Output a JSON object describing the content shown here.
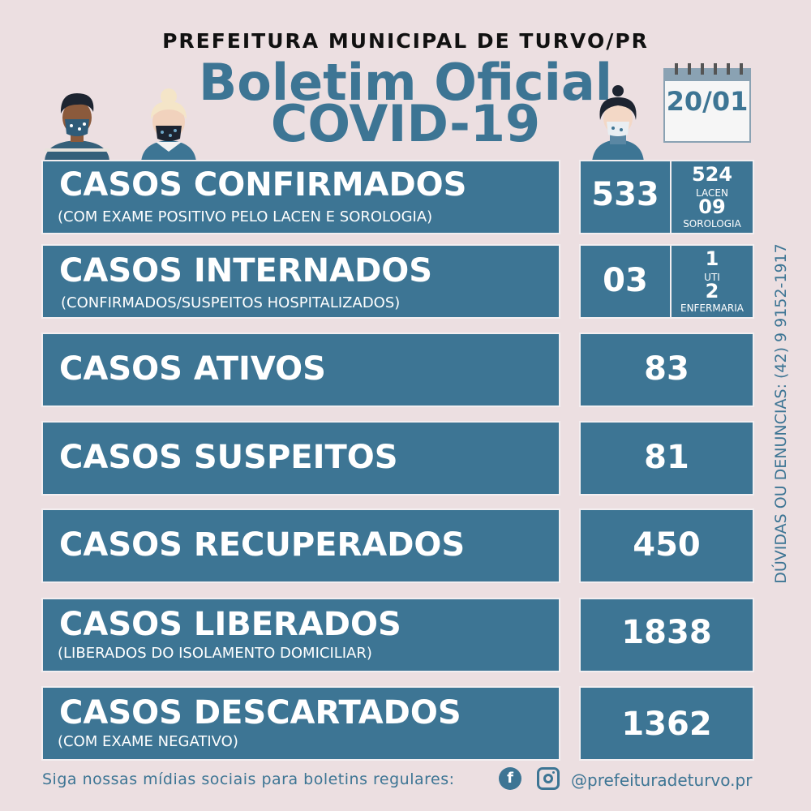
{
  "header": {
    "org": "PREFEITURA MUNICIPAL DE TURVO/PR",
    "title_line1": "Boletim Oficial",
    "title_line2": "COVID-19",
    "date": "20/01"
  },
  "rows": [
    {
      "label": "CASOS CONFIRMADOS",
      "sub": "(COM EXAME POSITIVO PELO LACEN E SOROLOGIA)",
      "value": "533",
      "breakdown": {
        "a_value": "524",
        "a_label": "LACEN",
        "b_value": "09",
        "b_label": "SOROLOGIA"
      }
    },
    {
      "label": "CASOS INTERNADOS",
      "sub": "(CONFIRMADOS/SUSPEITOS HOSPITALIZADOS)",
      "value": "03",
      "breakdown": {
        "a_value": "1",
        "a_label": "UTI",
        "b_value": "2",
        "b_label": "ENFERMARIA"
      }
    },
    {
      "label": "CASOS ATIVOS",
      "value": "83"
    },
    {
      "label": "CASOS SUSPEITOS",
      "value": "81"
    },
    {
      "label": "CASOS RECUPERADOS",
      "value": "450"
    },
    {
      "label": "CASOS LIBERADOS",
      "sub": "(LIBERADOS DO ISOLAMENTO DOMICILIAR)",
      "value": "1838"
    },
    {
      "label": "CASOS DESCARTADOS",
      "sub": "(COM EXAME NEGATIVO)",
      "value": "1362"
    }
  ],
  "side_contact": "DÚVIDAS OU DENUNCIAS: (42) 9 9152-1917",
  "footer": {
    "text": "Siga nossas mídias sociais para boletins regulares:",
    "handle": "@prefeituradeturvo.pr",
    "icons": [
      "facebook-icon",
      "instagram-icon"
    ]
  },
  "colors": {
    "accent": "#3d7594",
    "background": "#ecdfe1"
  }
}
